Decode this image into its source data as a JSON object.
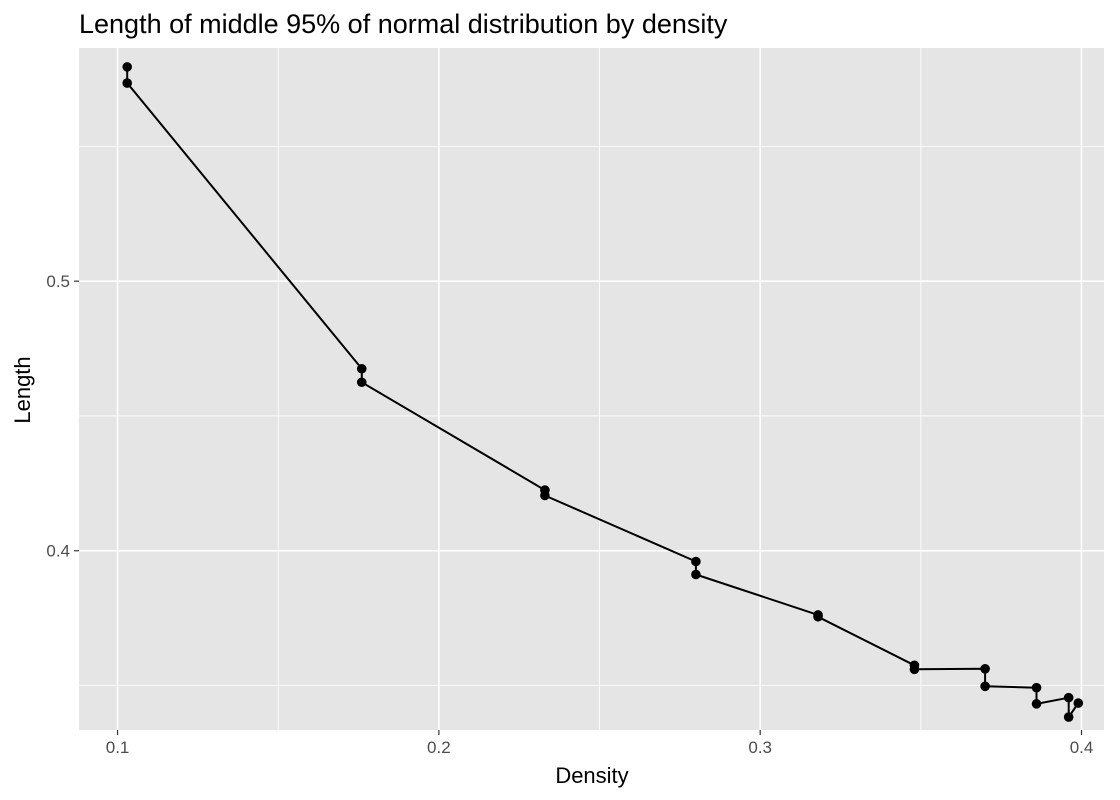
{
  "chart_data": {
    "type": "line",
    "title": "Length of middle 95% of normal distribution by density",
    "xlabel": "Density",
    "ylabel": "Length",
    "xlim": [
      0.088,
      0.407
    ],
    "ylim": [
      0.3335,
      0.5865
    ],
    "x_ticks": [
      0.1,
      0.2,
      0.3,
      0.4
    ],
    "x_tick_labels": [
      "0.1",
      "0.2",
      "0.3",
      "0.4"
    ],
    "y_ticks": [
      0.4,
      0.5
    ],
    "y_tick_labels": [
      "0.4",
      "0.5"
    ],
    "grid": true,
    "line_color": "#000000",
    "point_color": "#000000",
    "panel_background": "#e5e5e5",
    "grid_color": "#ffffff",
    "series": [
      {
        "x": [
          0.103,
          0.103,
          0.176,
          0.176,
          0.233,
          0.233,
          0.28,
          0.28,
          0.318,
          0.318,
          0.348,
          0.348,
          0.37,
          0.37,
          0.386,
          0.386,
          0.396,
          0.396,
          0.399
        ],
        "y": [
          0.5795,
          0.5735,
          0.4675,
          0.4625,
          0.4225,
          0.4205,
          0.396,
          0.3912,
          0.3762,
          0.3755,
          0.3575,
          0.356,
          0.3562,
          0.3497,
          0.3492,
          0.3432,
          0.3455,
          0.3383,
          0.3435
        ]
      }
    ]
  }
}
